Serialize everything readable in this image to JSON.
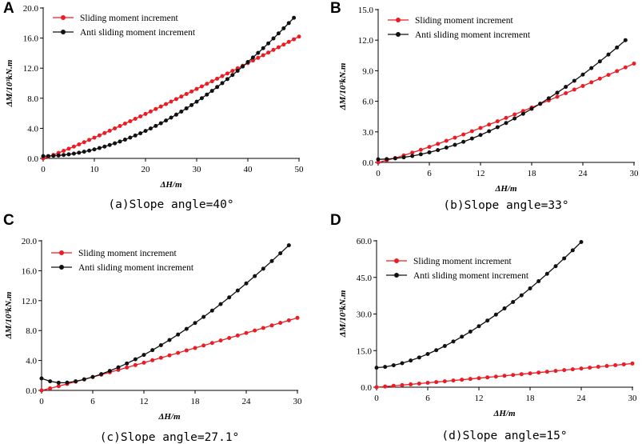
{
  "colors": {
    "sliding": "#ec1c24",
    "anti": "#111111",
    "axis": "#000000"
  },
  "chart_data": [
    {
      "letter": "A",
      "type": "line",
      "caption": "(a)Slope angle=40°",
      "xlabel": "ΔH/m",
      "ylabel": "ΔM/10³kN.m",
      "xlim": [
        0,
        50
      ],
      "ylim": [
        0,
        20
      ],
      "xticks": [
        "0",
        "10",
        "20",
        "30",
        "40",
        "50"
      ],
      "yticks": [
        "0.0",
        "4.0",
        "8.0",
        "12.0",
        "16.0",
        "20.0"
      ],
      "legend_position": "top-left",
      "series": [
        {
          "name": "Sliding moment increment",
          "color": "sliding",
          "x_range": [
            0,
            50
          ],
          "n_points": 50,
          "y_start": 0.0,
          "y_end": 16.2,
          "curve": 1.1
        },
        {
          "name": "Anti sliding moment increment",
          "color": "anti",
          "x_range": [
            0,
            49
          ],
          "n_points": 49,
          "y_start": 0.3,
          "y_end": 18.7,
          "curve": 1.9
        }
      ]
    },
    {
      "letter": "B",
      "type": "line",
      "caption": "(b)Slope angle=33°",
      "xlabel": "ΔH/m",
      "ylabel": "ΔM/10³kN.m",
      "xlim": [
        0,
        30
      ],
      "ylim": [
        0,
        15
      ],
      "xticks": [
        "0",
        "6",
        "12",
        "18",
        "24",
        "30"
      ],
      "yticks": [
        "0.0",
        "3.0",
        "6.0",
        "9.0",
        "12.0",
        "15.0"
      ],
      "legend_position": "top-left",
      "series": [
        {
          "name": "Sliding moment increment",
          "color": "sliding",
          "x_range": [
            0,
            30
          ],
          "n_points": 30,
          "y_start": 0.0,
          "y_end": 9.7,
          "curve": 1.15
        },
        {
          "name": "Anti sliding moment increment",
          "color": "anti",
          "x_range": [
            0,
            29
          ],
          "n_points": 29,
          "y_start": 0.3,
          "y_end": 12.0,
          "curve": 1.8
        }
      ]
    },
    {
      "letter": "C",
      "type": "line",
      "caption": "(c)Slope angle=27.1°",
      "xlabel": "ΔH/m",
      "ylabel": "ΔM/10³kN.m",
      "xlim": [
        0,
        30
      ],
      "ylim": [
        0,
        20
      ],
      "xticks": [
        "0",
        "6",
        "12",
        "18",
        "24",
        "30"
      ],
      "yticks": [
        "0.0",
        "4.0",
        "8.0",
        "12.0",
        "16.0",
        "20.0"
      ],
      "legend_position": "top-left",
      "series": [
        {
          "name": "Sliding moment increment",
          "color": "sliding",
          "x_range": [
            0,
            30
          ],
          "n_points": 30,
          "y_start": 0.0,
          "y_end": 9.7,
          "curve": 1.05
        },
        {
          "name": "Anti sliding moment increment",
          "color": "anti",
          "x_range": [
            0,
            29
          ],
          "n_points": 29,
          "y_start": 1.6,
          "y_end": 19.4,
          "mode": "dip",
          "y_min": 1.0,
          "x_min": 2.5,
          "curve": 1.55
        }
      ]
    },
    {
      "letter": "D",
      "type": "line",
      "caption": "(d)Slope angle=15°",
      "xlabel": "ΔH/m",
      "ylabel": "ΔM/10³kN.m",
      "xlim": [
        0,
        30
      ],
      "ylim": [
        0,
        60
      ],
      "xticks": [
        "0",
        "6",
        "12",
        "18",
        "24",
        "30"
      ],
      "yticks": [
        "0.0",
        "15.0",
        "30.0",
        "45.0",
        "60.0"
      ],
      "legend_position": "top-left",
      "series": [
        {
          "name": "Sliding moment increment",
          "color": "sliding",
          "x_range": [
            0,
            30
          ],
          "n_points": 30,
          "y_start": 0.0,
          "y_end": 9.7,
          "curve": 1.05
        },
        {
          "name": "Anti sliding moment increment",
          "color": "anti",
          "x_range": [
            0,
            24
          ],
          "n_points": 24,
          "y_start": 8.0,
          "y_end": 59.5,
          "curve": 1.6
        }
      ]
    }
  ]
}
